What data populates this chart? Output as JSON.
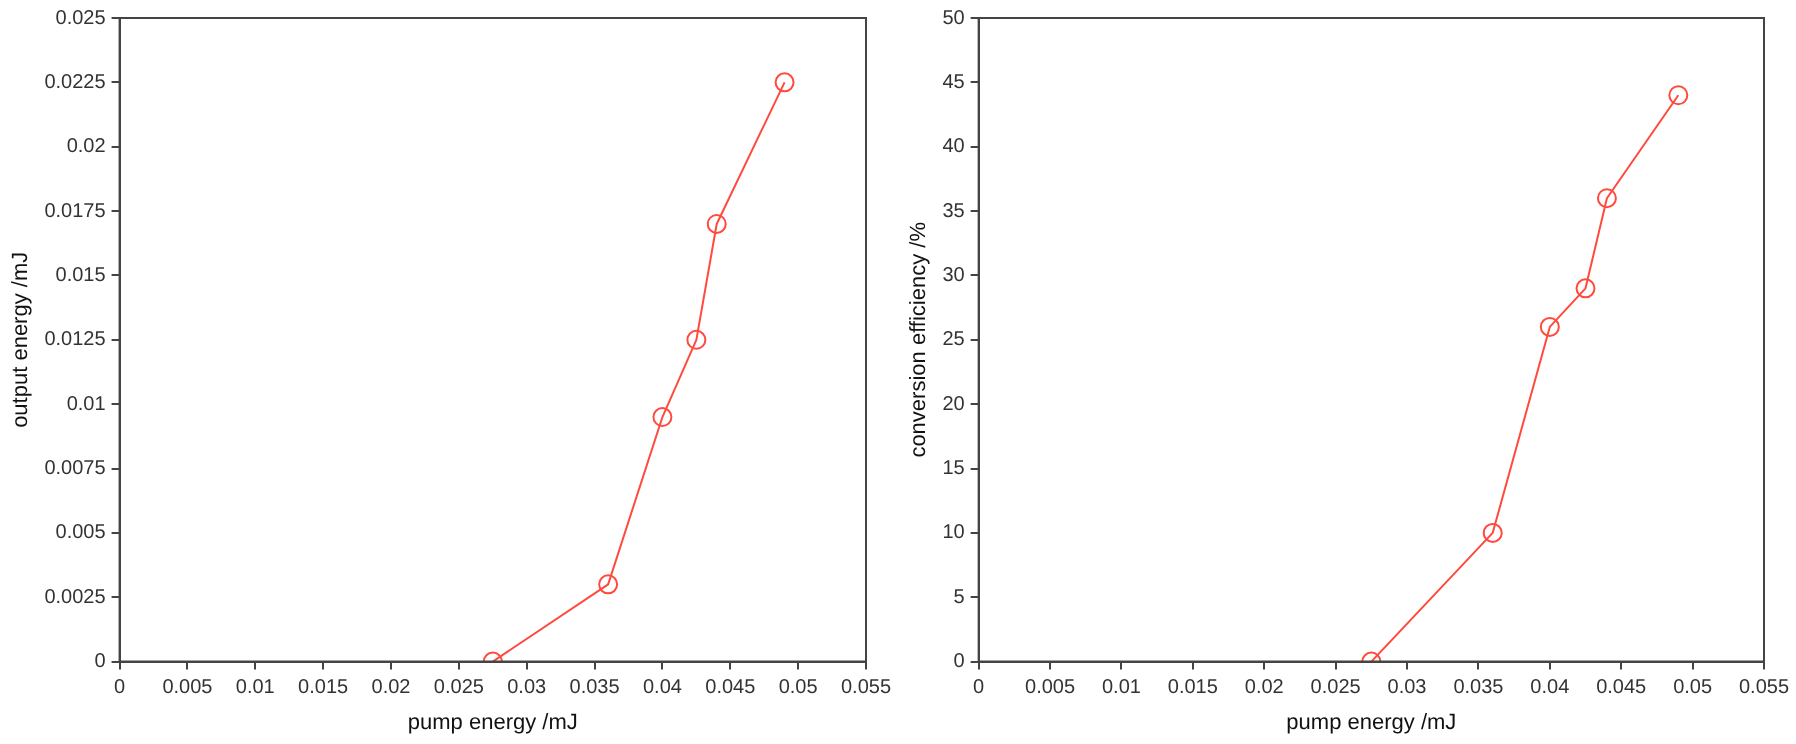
{
  "chart_data": [
    {
      "type": "line",
      "xlabel": "pump energy /mJ",
      "ylabel": "output energy /mJ",
      "x": [
        0.0275,
        0.036,
        0.04,
        0.0425,
        0.044,
        0.049
      ],
      "series": [
        {
          "color": "#ff4a3d",
          "values": [
            0,
            0.003,
            0.0095,
            0.0125,
            0.017,
            0.0225
          ]
        }
      ],
      "xlim": [
        0,
        0.055
      ],
      "xticks": [
        0,
        0.005,
        0.01,
        0.015,
        0.02,
        0.025,
        0.03,
        0.035,
        0.04,
        0.045,
        0.05,
        0.055
      ],
      "ylim": [
        0,
        0.025
      ],
      "yticks": [
        0,
        0.0025,
        0.005,
        0.0075,
        0.01,
        0.0125,
        0.015,
        0.0175,
        0.02,
        0.0225,
        0.025
      ],
      "grid": false,
      "legend": false,
      "marker": "circle",
      "line_style": "solid"
    },
    {
      "type": "line",
      "xlabel": "pump energy /mJ",
      "ylabel": "conversion efficiency /%",
      "x": [
        0.0275,
        0.036,
        0.04,
        0.0425,
        0.044,
        0.049
      ],
      "series": [
        {
          "color": "#ff4a3d",
          "values": [
            0,
            10,
            26,
            29,
            36,
            44
          ]
        }
      ],
      "xlim": [
        0,
        0.055
      ],
      "xticks": [
        0,
        0.005,
        0.01,
        0.015,
        0.02,
        0.025,
        0.03,
        0.035,
        0.04,
        0.045,
        0.05,
        0.055
      ],
      "ylim": [
        0,
        50
      ],
      "yticks": [
        0,
        5,
        10,
        15,
        20,
        25,
        30,
        35,
        40,
        45,
        50
      ],
      "grid": false,
      "legend": false,
      "marker": "circle",
      "line_style": "solid"
    }
  ]
}
